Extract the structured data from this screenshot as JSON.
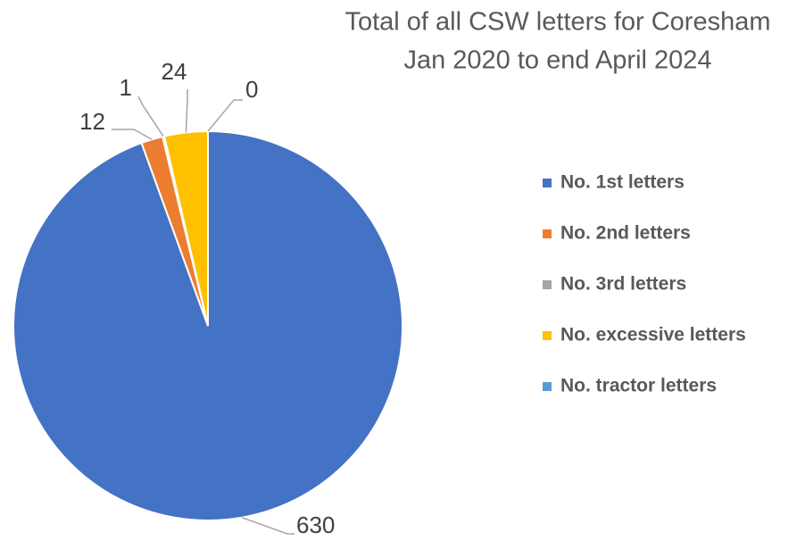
{
  "chart_data": {
    "type": "pie",
    "title": "Total of all CSW letters for Coresham",
    "subtitle": "Jan 2020 to end April 2024",
    "categories": [
      "No. 1st letters",
      "No. 2nd letters",
      "No. 3rd letters",
      "No. excessive letters",
      "No. tractor letters"
    ],
    "values": [
      630,
      12,
      1,
      24,
      0
    ],
    "colors": [
      "#4472c4",
      "#ed7d31",
      "#a5a5a5",
      "#ffc000",
      "#5b9bd5"
    ],
    "legend": "right"
  }
}
